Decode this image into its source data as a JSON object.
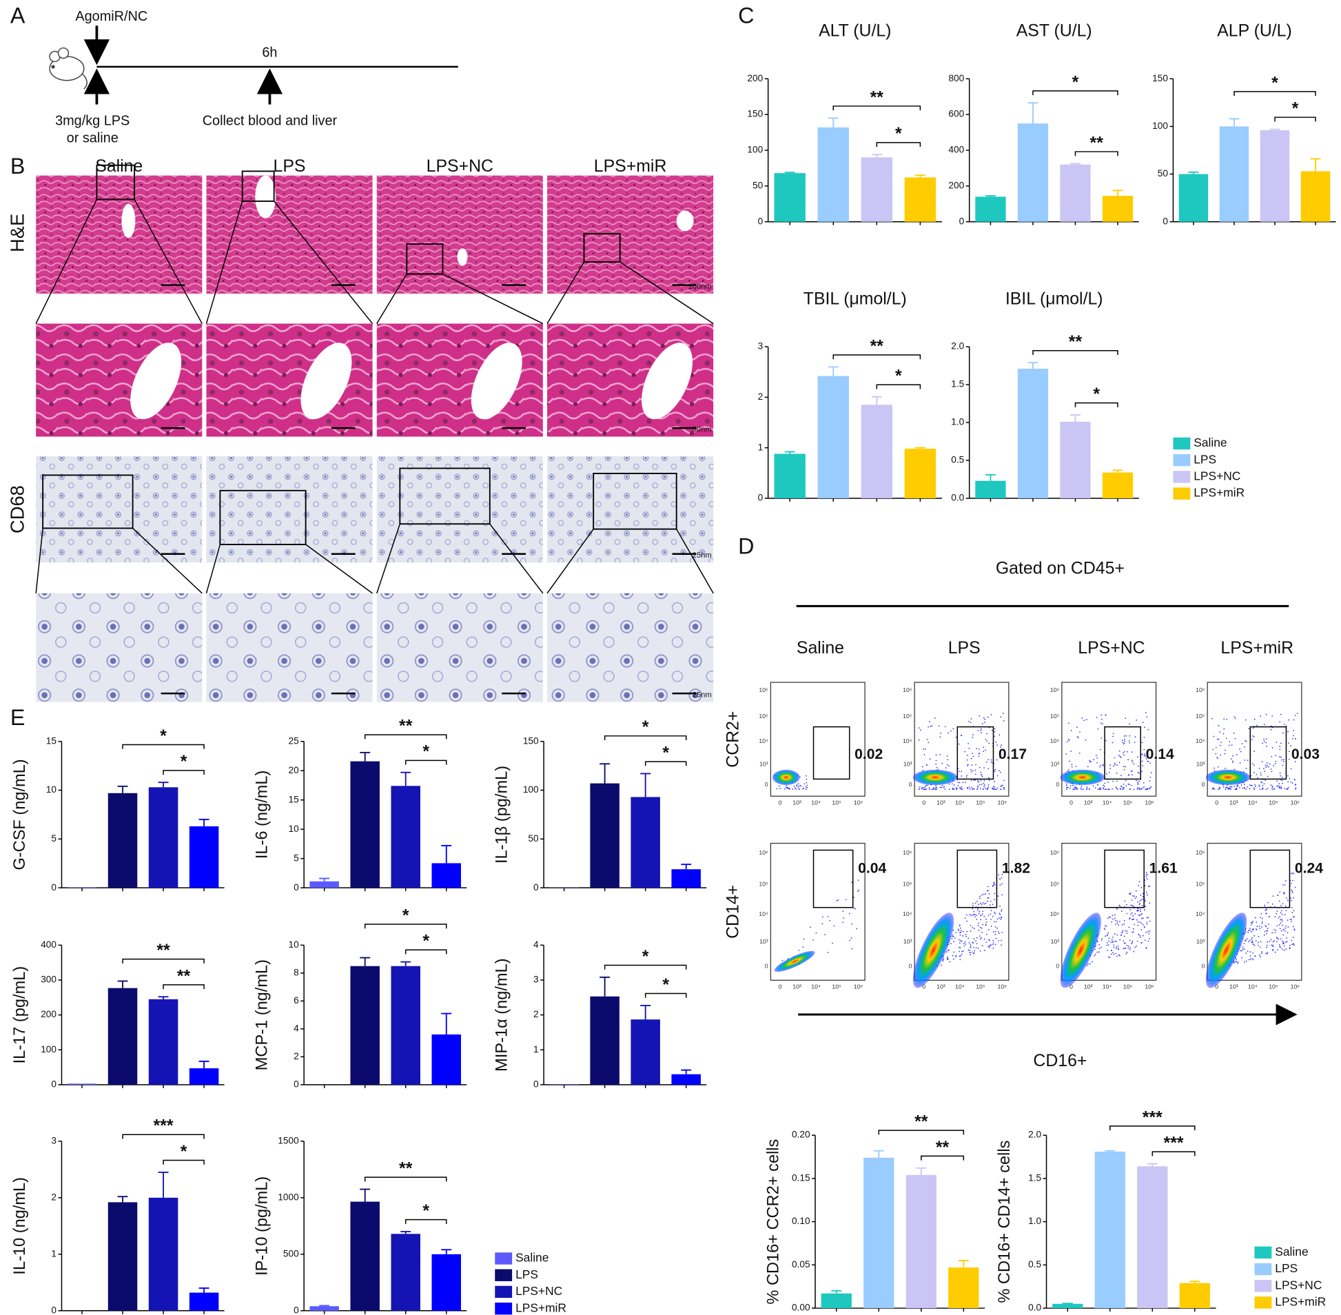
{
  "panel_labels": [
    "A",
    "B",
    "C",
    "D",
    "E"
  ],
  "timeline": {
    "top_label": "AgomiR/NC",
    "time_label": "6h",
    "left_label": [
      "3mg/kg LPS",
      "or saline"
    ],
    "right_label": "Collect blood and liver"
  },
  "histology": {
    "columns": [
      "Saline",
      "LPS",
      "LPS+NC",
      "LPS+miR"
    ],
    "rows": [
      "H&E",
      "CD68"
    ],
    "scale_bars": [
      "100nm",
      "50nm",
      "25nm",
      "25nm"
    ]
  },
  "flow": {
    "title": "Gated on CD45+",
    "columns": [
      "Saline",
      "LPS",
      "LPS+NC",
      "LPS+miR"
    ],
    "rows": [
      "CCR2+",
      "CD14+"
    ],
    "gate_values": [
      [
        0.02,
        0.17,
        0.14,
        0.03
      ],
      [
        0.04,
        1.82,
        1.61,
        0.24
      ]
    ],
    "axis_ticks": [
      "0",
      "10³",
      "10⁴",
      "10⁵",
      "10⁶"
    ],
    "x_label": "CD16+"
  },
  "legends": [
    {
      "names": [
        "Saline",
        "LPS",
        "LPS+NC",
        "LPS+miR"
      ],
      "colors": [
        "#1ec8bf",
        "#99ccff",
        "#cbc5f5",
        "#ffcc00"
      ]
    },
    {
      "names": [
        "Saline",
        "LPS",
        "LPS+NC",
        "LPS+miR"
      ],
      "colors": [
        "#1ec8bf",
        "#99ccff",
        "#cbc5f5",
        "#ffcc00"
      ]
    },
    {
      "names": [
        "Saline",
        "LPS",
        "LPS+NC",
        "LPS+miR"
      ],
      "colors": [
        "#5a5aff",
        "#0b0b6e",
        "#1414b4",
        "#0000ff"
      ]
    }
  ],
  "chart_data": [
    {
      "type": "bar",
      "title": "ALT (U/L)",
      "values": [
        68,
        132,
        90,
        62
      ],
      "errors": [
        1,
        13,
        4,
        3
      ],
      "colors": [
        "#1ec8bf",
        "#99ccff",
        "#cbc5f5",
        "#ffcc00"
      ],
      "ylim": [
        0,
        200
      ],
      "yticks": [
        0,
        50,
        100,
        150,
        200
      ],
      "brackets": [
        {
          "label": "**",
          "between": [
            1,
            3
          ]
        },
        {
          "label": "*",
          "between": [
            2,
            3
          ]
        }
      ]
    },
    {
      "type": "bar",
      "title": "AST (U/L)",
      "values": [
        140,
        550,
        320,
        145
      ],
      "errors": [
        5,
        115,
        5,
        30
      ],
      "colors": [
        "#1ec8bf",
        "#99ccff",
        "#cbc5f5",
        "#ffcc00"
      ],
      "ylim": [
        0,
        800
      ],
      "yticks": [
        0,
        200,
        400,
        600,
        800
      ],
      "brackets": [
        {
          "label": "*",
          "between": [
            1,
            3
          ]
        },
        {
          "label": "**",
          "between": [
            2,
            3
          ]
        }
      ]
    },
    {
      "type": "bar",
      "title": "ALP (U/L)",
      "values": [
        50,
        100,
        96,
        53
      ],
      "errors": [
        2,
        8,
        1,
        13
      ],
      "colors": [
        "#1ec8bf",
        "#99ccff",
        "#cbc5f5",
        "#ffcc00"
      ],
      "ylim": [
        0,
        150
      ],
      "yticks": [
        0,
        50,
        100,
        150
      ],
      "brackets": [
        {
          "label": "*",
          "between": [
            1,
            3
          ]
        },
        {
          "label": "*",
          "between": [
            2,
            3
          ]
        }
      ]
    },
    {
      "type": "bar",
      "title": "TBIL (μmol/L)",
      "values": [
        0.88,
        2.42,
        1.85,
        0.98
      ],
      "errors": [
        0.04,
        0.18,
        0.16,
        0.02
      ],
      "colors": [
        "#1ec8bf",
        "#99ccff",
        "#cbc5f5",
        "#ffcc00"
      ],
      "ylim": [
        0,
        3
      ],
      "yticks": [
        0,
        1,
        2,
        3
      ],
      "brackets": [
        {
          "label": "**",
          "between": [
            1,
            3
          ]
        },
        {
          "label": "*",
          "between": [
            2,
            3
          ]
        }
      ]
    },
    {
      "type": "bar",
      "title": "IBIL (μmol/L)",
      "values": [
        0.23,
        1.71,
        1.01,
        0.34
      ],
      "errors": [
        0.08,
        0.08,
        0.09,
        0.03
      ],
      "colors": [
        "#1ec8bf",
        "#99ccff",
        "#cbc5f5",
        "#ffcc00"
      ],
      "ylim": [
        0,
        2
      ],
      "yticks": [
        {
          "value": 0,
          "label": "0.0"
        },
        0.5,
        {
          "value": 1,
          "label": "1.0"
        },
        1.5,
        {
          "value": 2,
          "label": "2.0"
        }
      ],
      "brackets": [
        {
          "label": "**",
          "between": [
            1,
            3
          ]
        },
        {
          "label": "*",
          "between": [
            2,
            3
          ]
        }
      ]
    },
    {
      "type": "bar",
      "y_label": "% CD16+ CCR2+ cells",
      "values": [
        0.017,
        0.174,
        0.154,
        0.047
      ],
      "errors": [
        0.003,
        0.008,
        0.008,
        0.008
      ],
      "colors": [
        "#1ec8bf",
        "#99ccff",
        "#cbc5f5",
        "#ffcc00"
      ],
      "ylim": [
        0,
        0.2
      ],
      "yticks": [
        {
          "value": 0,
          "label": "0.00"
        },
        0.05,
        {
          "value": 0.1,
          "label": "0.10"
        },
        0.15,
        {
          "value": 0.2,
          "label": "0.20"
        }
      ],
      "brackets": [
        {
          "label": "**",
          "between": [
            1,
            3
          ]
        },
        {
          "label": "**",
          "between": [
            2,
            3
          ]
        }
      ]
    },
    {
      "type": "bar",
      "y_label": "% CD16+ CD14+ cells",
      "values": [
        0.05,
        1.81,
        1.64,
        0.29
      ],
      "errors": [
        0.005,
        0.01,
        0.03,
        0.02
      ],
      "colors": [
        "#1ec8bf",
        "#99ccff",
        "#cbc5f5",
        "#ffcc00"
      ],
      "ylim": [
        0,
        2
      ],
      "yticks": [
        {
          "value": 0,
          "label": "0.0"
        },
        0.5,
        {
          "value": 1,
          "label": "1.0"
        },
        1.5,
        {
          "value": 2,
          "label": "2.0"
        }
      ],
      "brackets": [
        {
          "label": "***",
          "between": [
            1,
            3
          ]
        },
        {
          "label": "***",
          "between": [
            2,
            3
          ]
        }
      ]
    },
    {
      "type": "bar",
      "y_label": "G-CSF (ng/mL)",
      "values": [
        0.05,
        9.7,
        10.3,
        6.3
      ],
      "errors": [
        0,
        0.7,
        0.5,
        0.7
      ],
      "colors": [
        "#5a5aff",
        "#0b0b6e",
        "#1414b4",
        "#0000ff"
      ],
      "ylim": [
        0,
        15
      ],
      "yticks": [
        0,
        5,
        10,
        15
      ],
      "brackets": [
        {
          "label": "*",
          "between": [
            1,
            3
          ]
        },
        {
          "label": "*",
          "between": [
            2,
            3
          ]
        }
      ]
    },
    {
      "type": "bar",
      "y_label": "IL-6 (ng/mL)",
      "values": [
        1.1,
        21.6,
        17.4,
        4.2
      ],
      "errors": [
        0.5,
        1.5,
        2.3,
        3
      ],
      "colors": [
        "#5a5aff",
        "#0b0b6e",
        "#1414b4",
        "#0000ff"
      ],
      "ylim": [
        0,
        25
      ],
      "yticks": [
        0,
        5,
        10,
        15,
        20,
        25
      ],
      "brackets": [
        {
          "label": "**",
          "between": [
            1,
            3
          ]
        },
        {
          "label": "*",
          "between": [
            2,
            3
          ]
        }
      ]
    },
    {
      "type": "bar",
      "y_label": "IL-1β (pg/mL)",
      "values": [
        0.3,
        107,
        93,
        19
      ],
      "errors": [
        0,
        20,
        24,
        5
      ],
      "colors": [
        "#5a5aff",
        "#0b0b6e",
        "#1414b4",
        "#0000ff"
      ],
      "ylim": [
        0,
        150
      ],
      "yticks": [
        0,
        50,
        100,
        150
      ],
      "brackets": [
        {
          "label": "*",
          "between": [
            1,
            3
          ]
        },
        {
          "label": "*",
          "between": [
            2,
            3
          ]
        }
      ]
    },
    {
      "type": "bar",
      "y_label": "IL-17 (pg/mL)",
      "values": [
        3,
        277,
        245,
        47
      ],
      "errors": [
        0,
        20,
        7,
        20
      ],
      "colors": [
        "#5a5aff",
        "#0b0b6e",
        "#1414b4",
        "#0000ff"
      ],
      "ylim": [
        0,
        400
      ],
      "yticks": [
        0,
        100,
        200,
        300,
        400
      ],
      "brackets": [
        {
          "label": "**",
          "between": [
            1,
            3
          ]
        },
        {
          "label": "**",
          "between": [
            2,
            3
          ]
        }
      ]
    },
    {
      "type": "bar",
      "y_label": "MCP-1 (ng/mL)",
      "values": [
        0,
        8.5,
        8.5,
        3.6
      ],
      "errors": [
        0,
        0.6,
        0.3,
        1.5
      ],
      "colors": [
        "#5a5aff",
        "#0b0b6e",
        "#1414b4",
        "#0000ff"
      ],
      "ylim": [
        0,
        10
      ],
      "yticks": [
        0,
        2,
        4,
        6,
        8,
        10
      ],
      "brackets": [
        {
          "label": "*",
          "between": [
            1,
            3
          ]
        },
        {
          "label": "*",
          "between": [
            2,
            3
          ]
        }
      ]
    },
    {
      "type": "bar",
      "y_label": "MIP-1α (ng/mL)",
      "values": [
        0.01,
        2.53,
        1.87,
        0.3
      ],
      "errors": [
        0,
        0.55,
        0.4,
        0.12
      ],
      "colors": [
        "#5a5aff",
        "#0b0b6e",
        "#1414b4",
        "#0000ff"
      ],
      "ylim": [
        0,
        4
      ],
      "yticks": [
        0,
        1,
        2,
        3,
        4
      ],
      "brackets": [
        {
          "label": "*",
          "between": [
            1,
            3
          ]
        },
        {
          "label": "*",
          "between": [
            2,
            3
          ]
        }
      ]
    },
    {
      "type": "bar",
      "y_label": "IL-10 (ng/mL)",
      "values": [
        0,
        1.92,
        2,
        0.32
      ],
      "errors": [
        0,
        0.1,
        0.45,
        0.08
      ],
      "colors": [
        "#5a5aff",
        "#0b0b6e",
        "#1414b4",
        "#0000ff"
      ],
      "ylim": [
        0,
        3
      ],
      "yticks": [
        0,
        1,
        2,
        3
      ],
      "brackets": [
        {
          "label": "***",
          "between": [
            1,
            3
          ]
        },
        {
          "label": "*",
          "between": [
            2,
            3
          ]
        }
      ]
    },
    {
      "type": "bar",
      "y_label": "IP-10 (pg/mL)",
      "values": [
        40,
        965,
        680,
        500
      ],
      "errors": [
        5,
        110,
        20,
        40
      ],
      "colors": [
        "#5a5aff",
        "#0b0b6e",
        "#1414b4",
        "#0000ff"
      ],
      "ylim": [
        0,
        1500
      ],
      "yticks": [
        0,
        500,
        1000,
        1500
      ],
      "brackets": [
        {
          "label": "**",
          "between": [
            1,
            3
          ]
        },
        {
          "label": "*",
          "between": [
            2,
            3
          ]
        }
      ]
    }
  ]
}
